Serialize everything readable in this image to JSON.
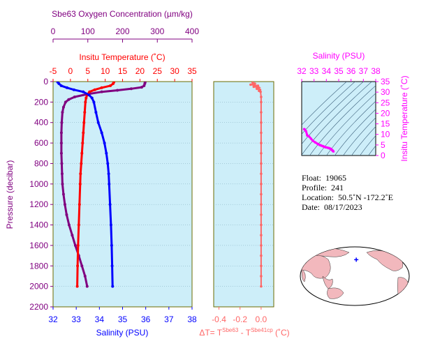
{
  "colors": {
    "purple": "#800080",
    "red": "#ff0000",
    "blue": "#0000ff",
    "olive": "#6b6b00",
    "delta": "#ff6666",
    "magenta": "#ff00ff",
    "panel_bg": "#cdeef9",
    "density_line": "#385c78",
    "land": "#f2b8bd"
  },
  "chart_data": [
    {
      "id": "profile",
      "type": "line",
      "top_axis_outer_label": "Sbe63 Oxygen Concentration (µm/kg)",
      "top_axis_outer_ticks": [
        "0",
        "100",
        "200",
        "300",
        "400"
      ],
      "top_axis_outer_range": [
        0,
        400
      ],
      "top_axis_inner_label": "Insitu Temperature (˚C)",
      "top_axis_inner_ticks": [
        "-5",
        "0",
        "5",
        "10",
        "15",
        "20",
        "25",
        "30",
        "35"
      ],
      "top_axis_inner_range": [
        -5,
        35
      ],
      "bottom_axis_label": "Salinity (PSU)",
      "bottom_axis_ticks": [
        "32",
        "33",
        "34",
        "35",
        "36",
        "37",
        "38"
      ],
      "bottom_axis_range": [
        32,
        38
      ],
      "y_axis_label": "Pressure (decibar)",
      "y_axis_ticks": [
        "0",
        "200",
        "400",
        "600",
        "800",
        "1000",
        "1200",
        "1400",
        "1600",
        "1800",
        "2000",
        "2200"
      ],
      "y_range": [
        0,
        2200
      ],
      "y_inverted": true,
      "series": [
        {
          "variable": "oxygen",
          "unit": "µm/kg",
          "color": "purple",
          "points": [
            [
              265,
              5
            ],
            [
              264,
              20
            ],
            [
              262,
              40
            ],
            [
              255,
              55
            ],
            [
              225,
              70
            ],
            [
              185,
              85
            ],
            [
              140,
              100
            ],
            [
              95,
              125
            ],
            [
              62,
              150
            ],
            [
              45,
              175
            ],
            [
              36,
              200
            ],
            [
              30,
              250
            ],
            [
              27,
              300
            ],
            [
              25,
              400
            ],
            [
              24,
              500
            ],
            [
              24,
              600
            ],
            [
              24,
              700
            ],
            [
              25,
              800
            ],
            [
              26,
              900
            ],
            [
              27,
              1000
            ],
            [
              30,
              1100
            ],
            [
              34,
              1200
            ],
            [
              39,
              1300
            ],
            [
              46,
              1400
            ],
            [
              55,
              1500
            ],
            [
              64,
              1600
            ],
            [
              74,
              1700
            ],
            [
              83,
              1800
            ],
            [
              92,
              1900
            ],
            [
              98,
              2000
            ]
          ]
        },
        {
          "variable": "temperature",
          "unit": "˚C",
          "color": "red",
          "points": [
            [
              12.5,
              5
            ],
            [
              12.3,
              20
            ],
            [
              11.5,
              40
            ],
            [
              9.0,
              60
            ],
            [
              7.0,
              80
            ],
            [
              5.5,
              100
            ],
            [
              4.8,
              130
            ],
            [
              4.5,
              160
            ],
            [
              4.3,
              200
            ],
            [
              4.1,
              300
            ],
            [
              3.9,
              400
            ],
            [
              3.7,
              500
            ],
            [
              3.5,
              600
            ],
            [
              3.3,
              700
            ],
            [
              3.1,
              800
            ],
            [
              2.9,
              900
            ],
            [
              2.8,
              1000
            ],
            [
              2.6,
              1200
            ],
            [
              2.4,
              1400
            ],
            [
              2.2,
              1600
            ],
            [
              2.05,
              1800
            ],
            [
              1.95,
              2000
            ]
          ]
        },
        {
          "variable": "salinity",
          "unit": "PSU",
          "color": "blue",
          "points": [
            [
              32.2,
              5
            ],
            [
              32.25,
              20
            ],
            [
              32.35,
              40
            ],
            [
              32.6,
              60
            ],
            [
              32.9,
              80
            ],
            [
              33.3,
              100
            ],
            [
              33.55,
              130
            ],
            [
              33.68,
              160
            ],
            [
              33.76,
              200
            ],
            [
              33.85,
              300
            ],
            [
              33.95,
              400
            ],
            [
              34.1,
              500
            ],
            [
              34.22,
              600
            ],
            [
              34.3,
              700
            ],
            [
              34.36,
              800
            ],
            [
              34.4,
              900
            ],
            [
              34.42,
              1000
            ],
            [
              34.46,
              1200
            ],
            [
              34.5,
              1400
            ],
            [
              34.53,
              1600
            ],
            [
              34.55,
              1800
            ],
            [
              34.57,
              2000
            ]
          ]
        }
      ]
    },
    {
      "id": "delta",
      "type": "line",
      "x_axis_label": "ΔT= T",
      "x_axis_label_sup1": "Sbe63",
      "x_axis_label_mid": " - T",
      "x_axis_label_sup2": "Sbe41cp",
      "x_axis_label_end": " (˚C)",
      "x_ticks": [
        "-0.4",
        "-0.2",
        "0.0"
      ],
      "x_range": [
        -0.45,
        0.12
      ],
      "y_range": [
        0,
        2200
      ],
      "y_inverted": true,
      "series": [
        {
          "variable": "delta_t",
          "color": "delta",
          "points": [
            [
              -0.08,
              10
            ],
            [
              -0.06,
              20
            ],
            [
              -0.1,
              30
            ],
            [
              -0.03,
              40
            ],
            [
              -0.07,
              50
            ],
            [
              -0.02,
              60
            ],
            [
              -0.04,
              70
            ],
            [
              -0.01,
              80
            ],
            [
              -0.02,
              90
            ],
            [
              -0.005,
              100
            ],
            [
              0.0,
              150
            ],
            [
              0.0,
              200
            ],
            [
              0.0,
              300
            ],
            [
              0.0,
              400
            ],
            [
              0.0,
              500
            ],
            [
              0.0,
              600
            ],
            [
              0.0,
              700
            ],
            [
              0.0,
              800
            ],
            [
              0.0,
              900
            ],
            [
              0.0,
              1000
            ],
            [
              0.0,
              1100
            ],
            [
              0.0,
              1200
            ],
            [
              0.0,
              1300
            ],
            [
              0.0,
              1400
            ],
            [
              0.0,
              1500
            ],
            [
              0.0,
              1600
            ],
            [
              0.0,
              1700
            ],
            [
              0.0,
              1800
            ],
            [
              0.0,
              1900
            ],
            [
              0.0,
              2000
            ]
          ]
        }
      ]
    },
    {
      "id": "ts",
      "type": "scatter",
      "x_axis_label": "Salinity (PSU)",
      "x_ticks": [
        "32",
        "33",
        "34",
        "35",
        "36",
        "37",
        "38"
      ],
      "x_range": [
        32,
        38
      ],
      "y_axis_label": "Insitu Temperature (˚C)",
      "y_ticks": [
        "0",
        "5",
        "10",
        "15",
        "20",
        "25",
        "30",
        "35"
      ],
      "y_range": [
        0,
        35
      ],
      "series": [
        {
          "variable": "t_s",
          "color": "magenta",
          "points": [
            [
              32.2,
              12.5
            ],
            [
              32.25,
              12.3
            ],
            [
              32.35,
              11.5
            ],
            [
              32.45,
              9.5
            ],
            [
              32.6,
              9.0
            ],
            [
              32.75,
              8.0
            ],
            [
              32.9,
              7.0
            ],
            [
              33.1,
              6.2
            ],
            [
              33.3,
              5.5
            ],
            [
              33.45,
              5.0
            ],
            [
              33.55,
              4.8
            ],
            [
              33.68,
              4.5
            ],
            [
              33.76,
              4.3
            ],
            [
              33.85,
              4.1
            ],
            [
              33.95,
              3.9
            ],
            [
              34.1,
              3.7
            ],
            [
              34.22,
              3.5
            ],
            [
              34.3,
              3.3
            ],
            [
              34.36,
              3.1
            ],
            [
              34.4,
              2.9
            ],
            [
              34.42,
              2.8
            ],
            [
              34.46,
              2.6
            ],
            [
              34.5,
              2.4
            ],
            [
              34.53,
              2.2
            ],
            [
              34.57,
              1.95
            ]
          ]
        }
      ]
    }
  ],
  "info": {
    "float_label": "Float:",
    "float_value": "19065",
    "profile_label": "Profile:",
    "profile_value": "241",
    "location_label": "Location:",
    "location_value": "50.5˚N  -172.2˚E",
    "date_label": "Date:",
    "date_value": "08/17/2023"
  },
  "map": {
    "float_lat": 50.5,
    "float_lon": -172.2,
    "center_lon": 180,
    "float_marker_color": "blue"
  }
}
